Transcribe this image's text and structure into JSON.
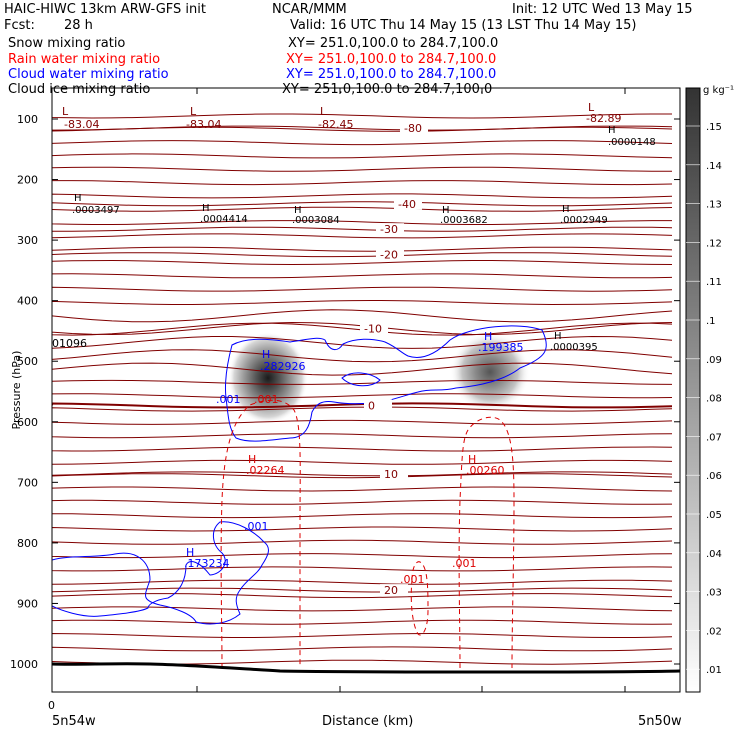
{
  "header": {
    "model": "HAIC-HIWC 13km ARW-GFS init",
    "center": "NCAR/MMM",
    "init": "Init: 12 UTC Wed 13 May 15",
    "fcst_label": "Fcst:",
    "fcst_value": "28 h",
    "valid": "Valid: 16 UTC Thu 14 May 15 (13 LST Thu 14 May 15)"
  },
  "fields": [
    {
      "name": "Snow mixing ratio",
      "xy": "XY= 251.0,100.0 to 284.7,100.0",
      "color": "#000000"
    },
    {
      "name": "Rain water mixing ratio",
      "xy": "XY= 251.0,100.0 to 284.7,100.0",
      "color": "#ff0000"
    },
    {
      "name": "Cloud water mixing ratio",
      "xy": "XY= 251.0,100.0 to 284.7,100.0",
      "color": "#0000ff"
    },
    {
      "name": "Cloud ice mixing ratio",
      "xy": "XY= 251.0,100.0 to 284.7,100.0",
      "color": "#000000"
    }
  ],
  "colors": {
    "temperature": "#800000",
    "cloud_water": "#0000ff",
    "rain": "#dd0000",
    "snow": "#000000",
    "terrain": "#000000"
  },
  "chart_data": {
    "type": "contour",
    "xlabel": "Distance (km)",
    "ylabel": "Pressure (hPa)",
    "x_start_label": "5n54w",
    "x_end_label": "5n50w",
    "x_origin_label": "0",
    "yticks": [
      "100",
      "200",
      "300",
      "400",
      "500",
      "600",
      "700",
      "800",
      "900",
      "1000"
    ],
    "ylim": [
      1050,
      50
    ],
    "colorbar": {
      "unit": "g kg⁻¹",
      "labels": [
        ".15",
        ".14",
        ".13",
        ".12",
        ".11",
        ".1",
        ".09",
        ".08",
        ".07",
        ".06",
        ".05",
        ".04",
        ".03",
        ".02",
        ".01"
      ],
      "levels": [
        0.15,
        0.14,
        0.13,
        0.12,
        0.11,
        0.1,
        0.09,
        0.08,
        0.07,
        0.06,
        0.05,
        0.04,
        0.03,
        0.02,
        0.01
      ]
    },
    "temperature_contours": [
      {
        "label": "-80",
        "pressure": 115
      },
      {
        "label": "-40",
        "pressure": 240
      },
      {
        "label": "-30",
        "pressure": 282
      },
      {
        "label": "-20",
        "pressure": 324
      },
      {
        "label": "-10",
        "pressure": 446
      },
      {
        "label": "0",
        "pressure": 573
      },
      {
        "label": "10",
        "pressure": 686
      },
      {
        "label": "20",
        "pressure": 878
      }
    ],
    "extrema": [
      {
        "type": "L",
        "value": "-83.04",
        "field": "temperature"
      },
      {
        "type": "L",
        "value": "-83.04",
        "field": "temperature"
      },
      {
        "type": "L",
        "value": "-82.45",
        "field": "temperature"
      },
      {
        "type": "L",
        "value": "-82.89",
        "field": "temperature"
      },
      {
        "type": "H",
        "value": ".0000148",
        "field": "cloud ice"
      },
      {
        "type": "H",
        "value": ".0003497",
        "field": "cloud ice"
      },
      {
        "type": "H",
        "value": ".0004414",
        "field": "cloud ice"
      },
      {
        "type": "H",
        "value": ".0003084",
        "field": "cloud ice"
      },
      {
        "type": "H",
        "value": ".0003682",
        "field": "cloud ice"
      },
      {
        "type": "H",
        "value": ".0002949",
        "field": "cloud ice"
      },
      {
        "type": "H",
        "value": ".282926",
        "field": "cloud water"
      },
      {
        "type": "H",
        "value": ".199385",
        "field": "cloud water"
      },
      {
        "type": "H",
        "value": ".0000395",
        "field": "cloud ice"
      },
      {
        "type": "H",
        "value": ".173234",
        "field": "cloud water"
      },
      {
        "type": "H",
        "value": ".02264",
        "field": "rain"
      },
      {
        "type": "H",
        "value": ".00260",
        "field": "rain"
      }
    ],
    "contour_labels": [
      {
        "text": ".001",
        "field": "cloud water"
      },
      {
        "text": ".001",
        "field": "cloud water"
      },
      {
        "text": ".001",
        "field": "rain"
      },
      {
        "text": ".001",
        "field": "rain"
      },
      {
        "text": ".001",
        "field": "rain"
      }
    ],
    "edge_label": "01096"
  }
}
